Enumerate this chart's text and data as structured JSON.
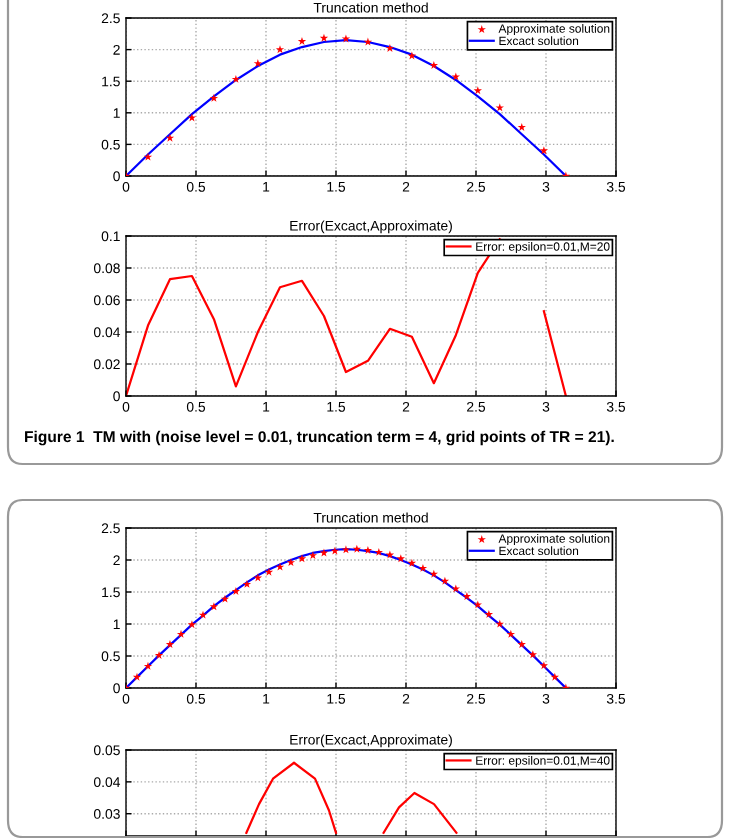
{
  "chart_data": [
    {
      "type": "line",
      "title": "Truncation method",
      "xlim": [
        0,
        3.5
      ],
      "xticks": [
        0,
        0.5,
        1,
        1.5,
        2,
        2.5,
        3,
        3.5
      ],
      "ylim": [
        0,
        2.5
      ],
      "yticks": [
        0,
        0.5,
        1,
        1.5,
        2,
        2.5
      ],
      "grid": true,
      "legend": "top right",
      "x": [
        0,
        0.157,
        0.314,
        0.471,
        0.628,
        0.785,
        0.942,
        1.1,
        1.257,
        1.414,
        1.571,
        1.728,
        1.885,
        2.042,
        2.199,
        2.356,
        2.513,
        2.67,
        2.827,
        2.985,
        3.142
      ],
      "series": [
        {
          "name": "Approximate solution",
          "type": "scatter",
          "marker": "star",
          "color": "#ff0000",
          "values": [
            0,
            0.3,
            0.6,
            0.92,
            1.23,
            1.53,
            1.78,
            2.0,
            2.13,
            2.18,
            2.17,
            2.12,
            2.02,
            1.9,
            1.75,
            1.57,
            1.35,
            1.08,
            0.77,
            0.4,
            0
          ]
        },
        {
          "name": "Excact solution",
          "type": "line",
          "color": "#0000ff",
          "values": [
            0,
            0.34,
            0.66,
            0.98,
            1.26,
            1.52,
            1.74,
            1.92,
            2.04,
            2.12,
            2.15,
            2.12,
            2.04,
            1.92,
            1.74,
            1.52,
            1.26,
            0.98,
            0.66,
            0.34,
            0
          ]
        }
      ]
    },
    {
      "type": "line",
      "title": "Error(Excact,Approximate)",
      "xlim": [
        0,
        3.5
      ],
      "xticks": [
        0,
        0.5,
        1,
        1.5,
        2,
        2.5,
        3,
        3.5
      ],
      "ylim": [
        0,
        0.1
      ],
      "yticks": [
        0,
        0.02,
        0.04,
        0.06,
        0.08,
        0.1
      ],
      "grid": true,
      "legend": "top right",
      "annotations": [
        "Figure 1  TM with (noise level = 0.01, truncation term = 4, grid points of TR = 21)."
      ],
      "x": [
        0,
        0.157,
        0.314,
        0.471,
        0.628,
        0.785,
        0.942,
        1.1,
        1.257,
        1.414,
        1.571,
        1.728,
        1.885,
        2.042,
        2.199,
        2.356,
        2.513,
        2.67,
        2.827,
        2.985,
        3.142
      ],
      "series": [
        {
          "name": "Error: epsilon=0.01,M=20",
          "color": "#ff0000",
          "values": [
            0,
            0.044,
            0.073,
            0.075,
            0.048,
            0.006,
            0.04,
            0.068,
            0.072,
            0.05,
            0.015,
            0.022,
            0.042,
            0.037,
            0.008,
            0.038,
            0.077,
            0.098,
            null,
            0.053,
            0
          ]
        }
      ]
    },
    {
      "type": "line",
      "title": "Truncation method",
      "xlim": [
        0,
        3.5
      ],
      "xticks": [
        0,
        0.5,
        1,
        1.5,
        2,
        2.5,
        3,
        3.5
      ],
      "ylim": [
        0,
        2.5
      ],
      "yticks": [
        0,
        0.5,
        1,
        1.5,
        2,
        2.5
      ],
      "grid": true,
      "legend": "top right",
      "x": [
        0,
        0.0785,
        0.157,
        0.236,
        0.314,
        0.393,
        0.471,
        0.55,
        0.628,
        0.707,
        0.785,
        0.864,
        0.942,
        1.021,
        1.1,
        1.178,
        1.257,
        1.335,
        1.414,
        1.492,
        1.571,
        1.649,
        1.728,
        1.806,
        1.885,
        1.963,
        2.042,
        2.121,
        2.199,
        2.278,
        2.356,
        2.435,
        2.513,
        2.592,
        2.67,
        2.749,
        2.827,
        2.906,
        2.985,
        3.063,
        3.142
      ],
      "series": [
        {
          "name": "Approximate solution",
          "type": "scatter",
          "marker": "star",
          "color": "#ff0000",
          "values": [
            0,
            0.17,
            0.34,
            0.51,
            0.68,
            0.84,
            0.99,
            1.14,
            1.27,
            1.39,
            1.51,
            1.62,
            1.72,
            1.81,
            1.89,
            1.96,
            2.02,
            2.07,
            2.11,
            2.14,
            2.16,
            2.17,
            2.15,
            2.12,
            2.08,
            2.02,
            1.95,
            1.87,
            1.78,
            1.67,
            1.55,
            1.43,
            1.3,
            1.15,
            1.0,
            0.84,
            0.68,
            0.52,
            0.35,
            0.17,
            0
          ]
        },
        {
          "name": "Excact solution",
          "type": "line",
          "color": "#0000ff",
          "values": [
            0,
            0.17,
            0.34,
            0.51,
            0.67,
            0.83,
            0.99,
            1.13,
            1.28,
            1.41,
            1.53,
            1.65,
            1.76,
            1.85,
            1.93,
            2.0,
            2.06,
            2.11,
            2.14,
            2.16,
            2.17,
            2.16,
            2.14,
            2.11,
            2.06,
            2.0,
            1.93,
            1.85,
            1.76,
            1.65,
            1.53,
            1.41,
            1.28,
            1.13,
            0.99,
            0.83,
            0.67,
            0.51,
            0.34,
            0.17,
            0
          ]
        }
      ]
    },
    {
      "type": "line",
      "title": "Error(Excact,Approximate)",
      "xlim": [
        0,
        3.5
      ],
      "xticks": [
        {
          "value": 0,
          "label": null
        },
        {
          "value": 0.5,
          "label": null
        },
        {
          "value": 1,
          "label": null
        },
        {
          "value": 1.5,
          "label": null
        },
        {
          "value": 2,
          "label": null
        },
        {
          "value": 2.5,
          "label": null
        },
        {
          "value": 3,
          "label": null
        },
        {
          "value": 3.5,
          "label": null
        }
      ],
      "ylim": [
        0.023,
        0.05
      ],
      "yticks": [
        0.03,
        0.04,
        0.05
      ],
      "tick_labels": "y",
      "grid": true,
      "legend": "top right",
      "x": [
        0.86,
        0.95,
        1.05,
        1.2,
        1.35,
        1.45,
        1.5,
        1.67,
        1.84,
        1.95,
        2.06,
        2.2,
        2.36
      ],
      "series": [
        {
          "name": "Error: epsilon=0.01,M=40",
          "color": "#ff0000",
          "values": [
            0.024,
            0.033,
            0.041,
            0.046,
            0.041,
            0.031,
            0.024,
            null,
            0.024,
            0.032,
            0.0365,
            0.033,
            0.024
          ]
        }
      ]
    }
  ]
}
